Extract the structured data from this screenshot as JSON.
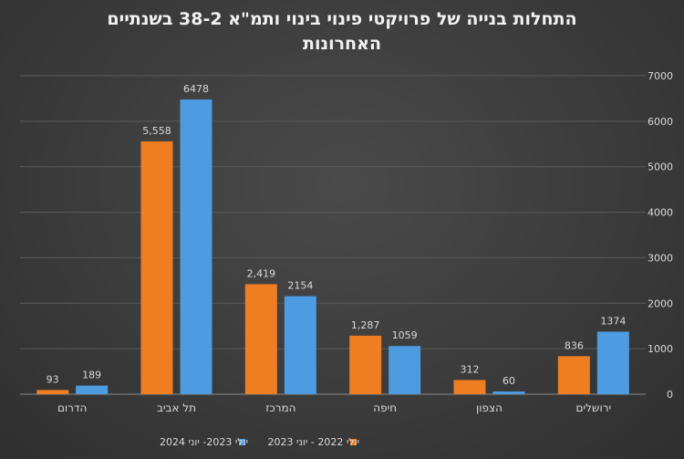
{
  "chart_data": {
    "type": "bar",
    "title_lines": [
      "התחלות בנייה של פרויקטי פינוי בינוי ותמ\"א 38-2  בשנתיים",
      "האחרונות"
    ],
    "categories": [
      "הדרום",
      "תל אביב",
      "המרכז",
      "חיפה",
      "הצפון",
      "ירושלים"
    ],
    "series": [
      {
        "name": "יולי 2022 - יוני 2023",
        "color": "#ef7d22",
        "values": [
          93,
          5558,
          2419,
          1287,
          312,
          836
        ],
        "labels": [
          "93",
          "5,558",
          "2,419",
          "1,287",
          "312",
          "836"
        ]
      },
      {
        "name": "יולי 2023- יוני 2024",
        "color": "#4d9be0",
        "values": [
          189,
          6478,
          2154,
          1059,
          60,
          1374
        ],
        "labels": [
          "189",
          "6478",
          "2154",
          "1059",
          "60",
          "1374"
        ]
      }
    ],
    "ylim": [
      0,
      7000
    ],
    "yticks": [
      "0",
      "1000",
      "2000",
      "3000",
      "4000",
      "5000",
      "6000",
      "7000"
    ],
    "y_axis_position": "right",
    "grid": true,
    "legend_position": "bottom",
    "legend_order": [
      1,
      0
    ]
  }
}
